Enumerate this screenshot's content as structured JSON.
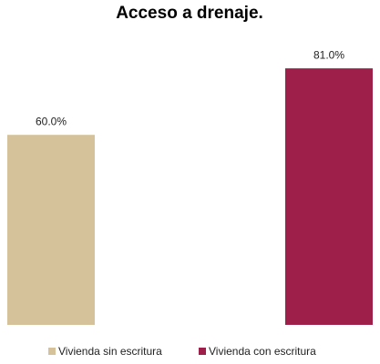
{
  "chart_data": {
    "type": "bar",
    "title": "Acceso a drenaje.",
    "categories": [
      "Vivienda sin escritura",
      "Vivienda con escritura"
    ],
    "values": [
      60,
      81
    ],
    "value_labels": [
      "60.0%",
      "81.0%"
    ],
    "colors": [
      "#d5c29a",
      "#9e1f49"
    ],
    "legend": "bottom"
  }
}
